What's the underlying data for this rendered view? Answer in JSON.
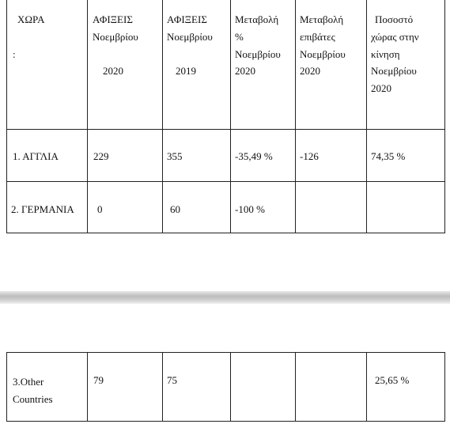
{
  "table": {
    "header": [
      [
        "ΧΩΡΑ",
        ":"
      ],
      [
        "ΑΦΙΞΕΙΣ",
        "Νοεμβρίου",
        "2020"
      ],
      [
        "ΑΦΙΞΕΙΣ",
        "Νοεμβρίου",
        "2019"
      ],
      [
        "Μεταβολή",
        "%",
        "Νοεμβρίου",
        "2020"
      ],
      [
        "Μεταβολή",
        "επιβάτες",
        "Νοεμβρίου",
        "2020"
      ],
      [
        "Ποσοστό",
        "χώρας στην",
        "κίνηση",
        "Νοεμβρίου",
        "2020"
      ]
    ],
    "rows": [
      [
        "1.  ΑΓΓΛΙΑ",
        "229",
        "355",
        "-35,49 %",
        "-126",
        "74,35 %"
      ],
      [
        "2. ΓΕΡΜΑΝΙΑ",
        "0",
        "60",
        "-100 %",
        null,
        null
      ],
      [
        "3.Other Countries",
        "79",
        "75",
        null,
        null,
        "25,65 %"
      ]
    ]
  }
}
